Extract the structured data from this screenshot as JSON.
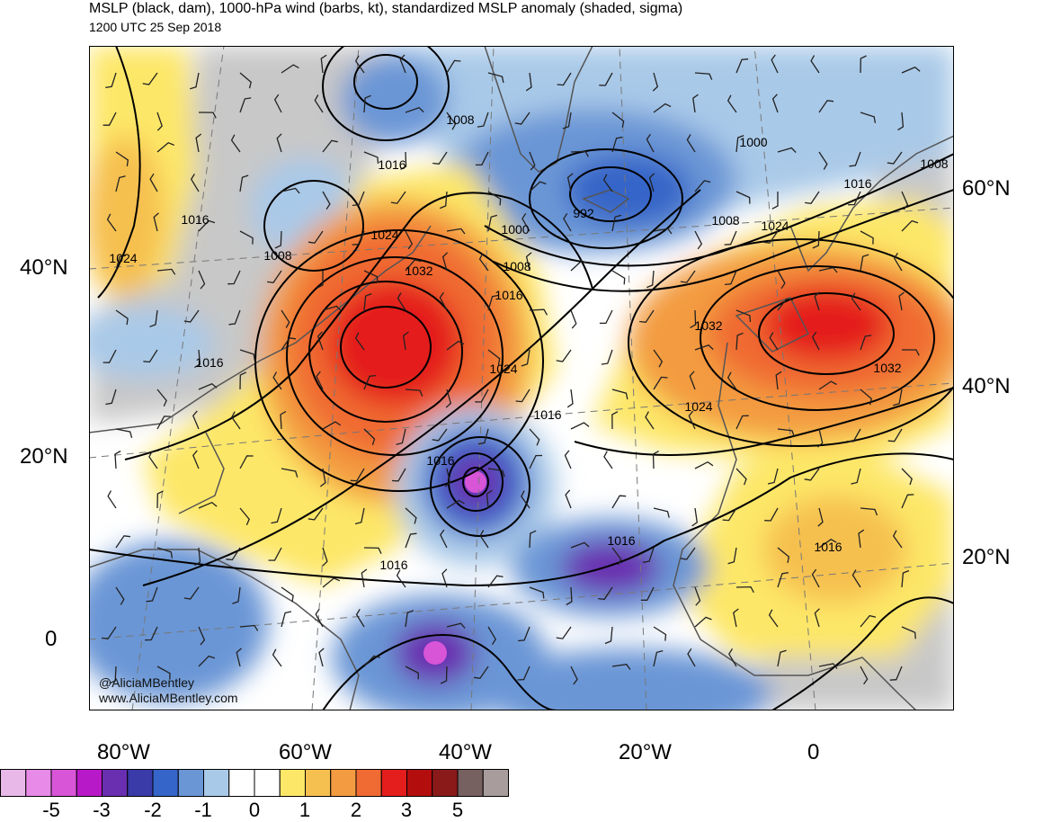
{
  "header": {
    "title": "MSLP (black, dam), 1000-hPa wind (barbs, kt), standardized MSLP anomaly (shaded, sigma)",
    "subtitle": "1200 UTC 25 Sep 2018"
  },
  "axes": {
    "left_lat": [
      "40°N",
      "20°N",
      "0"
    ],
    "right_lat": [
      "60°N",
      "40°N",
      "20°N"
    ],
    "bottom_lon": [
      "80°W",
      "60°W",
      "40°W",
      "20°W",
      "0"
    ]
  },
  "isobar_labels": [
    "1008",
    "1000",
    "1008",
    "1016",
    "1016",
    "1024",
    "1008",
    "1016",
    "1024",
    "992",
    "1000",
    "1008",
    "1032",
    "1016",
    "1008",
    "1024",
    "1032",
    "1016",
    "1024",
    "1032",
    "1024",
    "1016",
    "1016",
    "1016",
    "1016",
    "1016"
  ],
  "watermark": {
    "handle": "@AliciaMBentley",
    "site": "www.AliciaMBentley.com"
  },
  "colorbar": {
    "colors": [
      "#e8b8e8",
      "#e88ae8",
      "#d855d8",
      "#b819c8",
      "#6a2eb0",
      "#3a3aa8",
      "#3565c8",
      "#6a96d6",
      "#a9c9e8",
      "#ffffff",
      "#ffffff",
      "#fde768",
      "#f6c050",
      "#f39b40",
      "#f06a33",
      "#e41d1d",
      "#b40d0d",
      "#8a1a1a",
      "#766060",
      "#a89c9c"
    ],
    "labels": [
      "-5",
      "-3",
      "-2",
      "-1",
      "0",
      "1",
      "2",
      "3",
      "5"
    ]
  },
  "colors": {
    "land_gray": "#c8c8c8",
    "ocean_white": "#ffffff"
  }
}
